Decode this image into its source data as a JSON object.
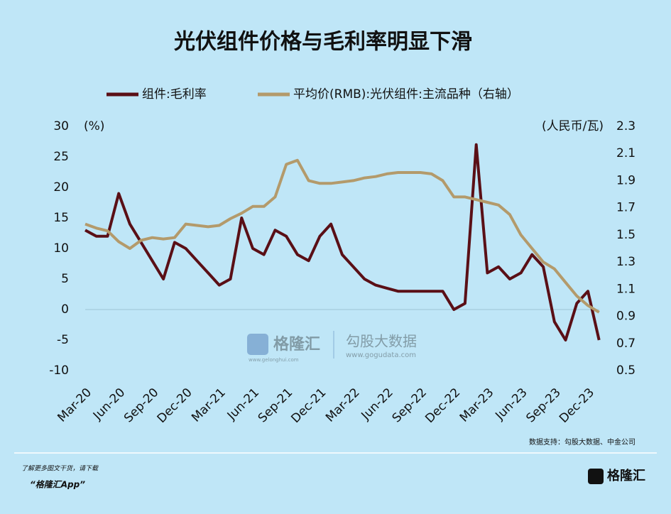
{
  "chart_data": {
    "type": "line",
    "title": "光伏组件价格与毛利率明显下滑",
    "y_unit": "(%)",
    "y2_unit": "(人民币/瓦)",
    "categories": [
      "Mar-20",
      null,
      null,
      "Jun-20",
      null,
      null,
      "Sep-20",
      null,
      null,
      "Dec-20",
      null,
      null,
      "Mar-21",
      null,
      null,
      "Jun-21",
      null,
      null,
      "Sep-21",
      null,
      null,
      "Dec-21",
      null,
      null,
      "Mar-22",
      null,
      null,
      "Jun-22",
      null,
      null,
      "Sep-22",
      null,
      null,
      "Dec-22",
      null,
      null,
      "Mar-23",
      null,
      null,
      "Jun-23",
      null,
      null,
      "Sep-23",
      null,
      null,
      "Dec-23",
      null
    ],
    "series": [
      {
        "name": "组件:毛利率",
        "color": "#5a0f16",
        "values": [
          13,
          12,
          12,
          19,
          14,
          11,
          8,
          5,
          11,
          10,
          8,
          6,
          4,
          5,
          15,
          10,
          9,
          13,
          12,
          9,
          8,
          12,
          14,
          9,
          7,
          5,
          4,
          3.5,
          3,
          3,
          3,
          3,
          3,
          0,
          1,
          27,
          6,
          7,
          5,
          6,
          9,
          7,
          -2,
          -5,
          1,
          3,
          -5
        ]
      },
      {
        "name": "平均价(RMB):光伏组件:主流品种（右轴）",
        "color": "#b39a6b",
        "axis": "y2",
        "values": [
          1.58,
          1.55,
          1.53,
          1.45,
          1.4,
          1.46,
          1.48,
          1.47,
          1.48,
          1.58,
          1.57,
          1.56,
          1.57,
          1.62,
          1.66,
          1.71,
          1.71,
          1.78,
          2.02,
          2.05,
          1.9,
          1.88,
          1.88,
          1.89,
          1.9,
          1.92,
          1.93,
          1.95,
          1.96,
          1.96,
          1.96,
          1.95,
          1.9,
          1.78,
          1.78,
          1.76,
          1.74,
          1.72,
          1.65,
          1.5,
          1.4,
          1.3,
          1.25,
          1.15,
          1.05,
          0.98,
          0.93
        ]
      }
    ],
    "ylim": [
      -10,
      30
    ],
    "yticks": [
      -10,
      -5,
      0,
      5,
      10,
      15,
      20,
      25,
      30
    ],
    "y2lim": [
      0.5,
      2.3
    ],
    "y2ticks": [
      0.5,
      0.7,
      0.9,
      1.1,
      1.3,
      1.5,
      1.7,
      1.9,
      2.1,
      2.3
    ],
    "reference_line": 0,
    "legend": "top"
  },
  "watermark": {
    "brand": "格隆汇",
    "site": "www.gelonghui.com",
    "data_brand": "勾股大数据",
    "data_site": "www.gogudata.com"
  },
  "footer": {
    "source": "数据支持：勾股大数据、中金公司",
    "promo": "了解更多图文干货，请下载",
    "app": "“格隆汇App”",
    "logo": "格隆汇"
  }
}
